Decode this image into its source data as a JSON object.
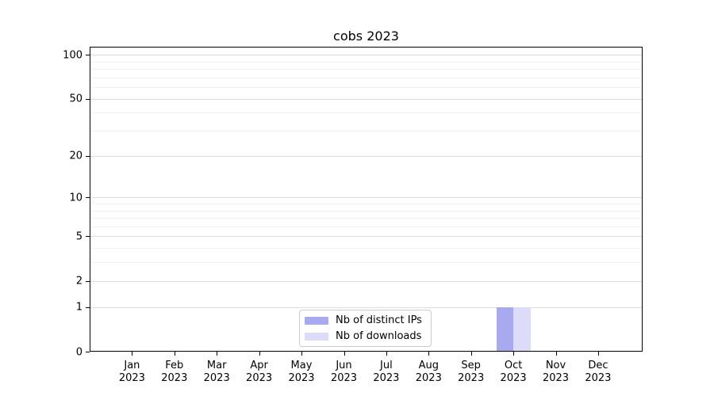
{
  "chart_data": {
    "type": "bar",
    "title": "cobs 2023",
    "categories": [
      "Jan",
      "Feb",
      "Mar",
      "Apr",
      "May",
      "Jun",
      "Jul",
      "Aug",
      "Sep",
      "Oct",
      "Nov",
      "Dec"
    ],
    "year_label": "2023",
    "series": [
      {
        "name": "Nb of distinct IPs",
        "color": "#a9a9f0",
        "values": [
          0,
          0,
          0,
          0,
          0,
          0,
          0,
          0,
          0,
          1,
          0,
          0
        ]
      },
      {
        "name": "Nb of downloads",
        "color": "#dcdcf8",
        "values": [
          0,
          0,
          0,
          0,
          0,
          0,
          0,
          0,
          0,
          1,
          0,
          0
        ]
      }
    ],
    "y_axis": {
      "scale": "log1p",
      "tick_labels": [
        "0",
        "1",
        "2",
        "5",
        "10",
        "20",
        "50",
        "100"
      ],
      "major_tick_values": [
        0,
        1,
        2,
        5,
        10,
        20,
        50,
        100
      ],
      "minor_gridline_values": [
        3,
        4,
        6,
        7,
        8,
        9,
        30,
        40,
        60,
        70,
        80,
        90
      ],
      "range_bottom": 0,
      "range_top_approx": 113
    },
    "x_axis": {
      "grid": false
    },
    "grid": {
      "major": true,
      "minor": true
    },
    "legend": {
      "position": "bottom-center-inside",
      "entries": [
        "Nb of distinct IPs",
        "Nb of downloads"
      ]
    },
    "colors": {
      "distinct_ips_bar": "#a9a9f0",
      "downloads_bar": "#dcdcf8",
      "major_gridline": "#dcdcdc",
      "minor_gridline": "#f0f0f0",
      "axis": "#000000",
      "legend_border": "#cccccc",
      "background": "#ffffff",
      "text": "#000000"
    }
  }
}
